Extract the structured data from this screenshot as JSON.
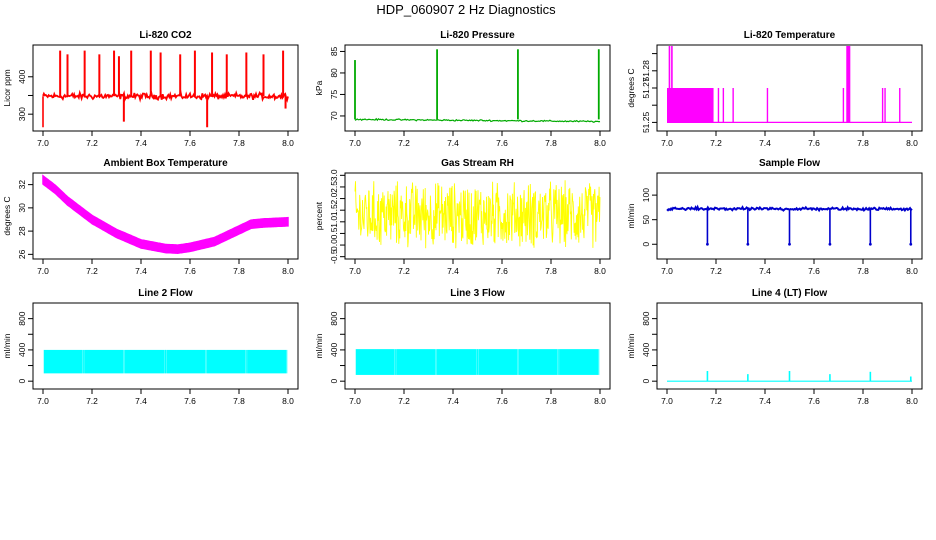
{
  "page": {
    "title": "HDP_060907 2 Hz Diagnostics"
  },
  "chart_data": [
    {
      "type": "line",
      "title": "Li-820 CO2",
      "ylabel": "Licor ppm",
      "xlabel": "",
      "xlim": [
        7.0,
        8.0
      ],
      "ylim": [
        255,
        485
      ],
      "xticks": [
        7.0,
        7.2,
        7.4,
        7.6,
        7.8,
        8.0
      ],
      "xtick_labels": [
        "7.0",
        "7.2",
        "7.4",
        "7.6",
        "7.8",
        "8.0"
      ],
      "yticks": [
        300,
        350,
        400
      ],
      "ytick_labels": [
        "300",
        "",
        "400"
      ],
      "color": "#ff0000",
      "series": [
        {
          "name": "CO2",
          "baseline": 348,
          "noise": 7,
          "start_spike": 280,
          "start_spike_low": 265,
          "spikes": [
            {
              "x": 7.07,
              "y": 470
            },
            {
              "x": 7.1,
              "y": 460
            },
            {
              "x": 7.17,
              "y": 470
            },
            {
              "x": 7.23,
              "y": 460
            },
            {
              "x": 7.29,
              "y": 470
            },
            {
              "x": 7.31,
              "y": 455
            },
            {
              "x": 7.33,
              "y": 280
            },
            {
              "x": 7.36,
              "y": 470
            },
            {
              "x": 7.44,
              "y": 470
            },
            {
              "x": 7.48,
              "y": 465
            },
            {
              "x": 7.56,
              "y": 460
            },
            {
              "x": 7.62,
              "y": 470
            },
            {
              "x": 7.67,
              "y": 265
            },
            {
              "x": 7.69,
              "y": 465
            },
            {
              "x": 7.75,
              "y": 460
            },
            {
              "x": 7.83,
              "y": 465
            },
            {
              "x": 7.9,
              "y": 460
            },
            {
              "x": 7.98,
              "y": 470
            },
            {
              "x": 7.99,
              "y": 315
            }
          ]
        }
      ]
    },
    {
      "type": "line",
      "title": "Li-820 Pressure",
      "ylabel": "kPa",
      "xlabel": "",
      "xlim": [
        7.0,
        8.0
      ],
      "ylim": [
        66.5,
        86.5
      ],
      "xticks": [
        7.0,
        7.2,
        7.4,
        7.6,
        7.8,
        8.0
      ],
      "xtick_labels": [
        "7.0",
        "7.2",
        "7.4",
        "7.6",
        "7.8",
        "8.0"
      ],
      "yticks": [
        70,
        75,
        80,
        85
      ],
      "ytick_labels": [
        "70",
        "75",
        "80",
        "85"
      ],
      "color": "#00aa00",
      "series": [
        {
          "name": "Pressure",
          "start": 69.2,
          "end": 68.7,
          "noise": 0.15,
          "spikes": [
            {
              "x": 7.0,
              "y": 83
            },
            {
              "x": 7.335,
              "y": 85.5
            },
            {
              "x": 7.665,
              "y": 85.5
            },
            {
              "x": 7.995,
              "y": 85.5
            }
          ]
        }
      ]
    },
    {
      "type": "line",
      "title": "Li-820 Temperature",
      "ylabel": "degrees C",
      "xlabel": "",
      "xlim": [
        7.0,
        8.0
      ],
      "ylim": [
        51.245,
        51.295
      ],
      "xticks": [
        7.0,
        7.2,
        7.4,
        7.6,
        7.8,
        8.0
      ],
      "xtick_labels": [
        "7.0",
        "7.2",
        "7.4",
        "7.6",
        "7.8",
        "8.0"
      ],
      "yticks": [
        51.25,
        51.26,
        51.27,
        51.28,
        51.29
      ],
      "ytick_labels": [
        "51.25",
        "",
        "51.27",
        "51.28",
        ""
      ],
      "color": "#ff00ff",
      "series": [
        {
          "name": "Temperature",
          "low": 51.25,
          "mid": 51.27,
          "high": 51.295,
          "dense_band": [
            7.0,
            7.19
          ],
          "full_spikes": [
            7.01,
            7.02,
            7.735,
            7.74,
            7.745
          ],
          "mid_spikes": [
            7.21,
            7.23,
            7.27,
            7.41,
            7.72,
            7.88,
            7.89,
            7.95
          ]
        }
      ]
    },
    {
      "type": "line",
      "title": "Ambient Box Temperature",
      "ylabel": "degrees C",
      "xlabel": "",
      "xlim": [
        7.0,
        8.0
      ],
      "ylim": [
        25.6,
        33.0
      ],
      "xticks": [
        7.0,
        7.2,
        7.4,
        7.6,
        7.8,
        8.0
      ],
      "xtick_labels": [
        "7.0",
        "7.2",
        "7.4",
        "7.6",
        "7.8",
        "8.0"
      ],
      "yticks": [
        26,
        28,
        30,
        32
      ],
      "ytick_labels": [
        "26",
        "28",
        "30",
        "32"
      ],
      "color": "#ff00ff",
      "series": [
        {
          "name": "Ambient",
          "noise": 0.35,
          "x": [
            7.0,
            7.05,
            7.1,
            7.2,
            7.3,
            7.4,
            7.5,
            7.55,
            7.6,
            7.7,
            7.8,
            7.85,
            7.9,
            8.0
          ],
          "y": [
            32.4,
            31.6,
            30.6,
            29.0,
            27.8,
            26.9,
            26.5,
            26.45,
            26.6,
            27.1,
            28.1,
            28.6,
            28.7,
            28.8
          ]
        }
      ]
    },
    {
      "type": "line",
      "title": "Gas Stream RH",
      "ylabel": "percent",
      "xlabel": "",
      "xlim": [
        7.0,
        8.0
      ],
      "ylim": [
        -0.6,
        3.1
      ],
      "xticks": [
        7.0,
        7.2,
        7.4,
        7.6,
        7.8,
        8.0
      ],
      "xtick_labels": [
        "7.0",
        "7.2",
        "7.4",
        "7.6",
        "7.8",
        "8.0"
      ],
      "yticks": [
        -0.5,
        0.5,
        1.5,
        2.5
      ],
      "ytick_labels": [
        "-0.5",
        "0.5",
        "1.5",
        "2.5"
      ],
      "extra_yticks": [
        0.0,
        1.0,
        2.0,
        3.0
      ],
      "extra_ytick_labels": [
        "0.0",
        "1.0",
        "2.0",
        "3.0"
      ],
      "color": "#ffff00",
      "series": [
        {
          "name": "RH",
          "center": 1.3,
          "amplitude": 1.6
        }
      ]
    },
    {
      "type": "line",
      "title": "Sample Flow",
      "ylabel": "ml/min",
      "xlabel": "",
      "xlim": [
        7.0,
        8.0
      ],
      "ylim": [
        -30,
        145
      ],
      "xticks": [
        7.0,
        7.2,
        7.4,
        7.6,
        7.8,
        8.0
      ],
      "xtick_labels": [
        "7.0",
        "7.2",
        "7.4",
        "7.6",
        "7.8",
        "8.0"
      ],
      "yticks": [
        0,
        50,
        100
      ],
      "ytick_labels": [
        "0",
        "50",
        "100"
      ],
      "color": "#0000cc",
      "series": [
        {
          "name": "Sample Flow",
          "baseline": 72,
          "noise": 2.5,
          "drops": [
            {
              "x": 7.165,
              "y": 0
            },
            {
              "x": 7.33,
              "y": 0
            },
            {
              "x": 7.5,
              "y": 0
            },
            {
              "x": 7.665,
              "y": 0
            },
            {
              "x": 7.83,
              "y": 0
            },
            {
              "x": 7.995,
              "y": 0
            }
          ]
        }
      ]
    },
    {
      "type": "line",
      "title": "Line 2 Flow",
      "ylabel": "ml/min",
      "xlabel": "",
      "xlim": [
        7.0,
        8.0
      ],
      "ylim": [
        -100,
        1000
      ],
      "xticks": [
        7.0,
        7.2,
        7.4,
        7.6,
        7.8,
        8.0
      ],
      "xtick_labels": [
        "7.0",
        "7.2",
        "7.4",
        "7.6",
        "7.8",
        "8.0"
      ],
      "yticks": [
        0,
        200,
        400,
        600,
        800
      ],
      "ytick_labels": [
        "0",
        "",
        "400",
        "",
        "800"
      ],
      "color": "#00ffff",
      "series": [
        {
          "name": "Line 2",
          "low": 100,
          "high": 400,
          "gaps": [
            7.165,
            7.33,
            7.5,
            7.665,
            7.83,
            7.995
          ]
        }
      ]
    },
    {
      "type": "line",
      "title": "Line 3 Flow",
      "ylabel": "ml/min",
      "xlabel": "",
      "xlim": [
        7.0,
        8.0
      ],
      "ylim": [
        -100,
        1000
      ],
      "xticks": [
        7.0,
        7.2,
        7.4,
        7.6,
        7.8,
        8.0
      ],
      "xtick_labels": [
        "7.0",
        "7.2",
        "7.4",
        "7.6",
        "7.8",
        "8.0"
      ],
      "yticks": [
        0,
        200,
        400,
        600,
        800
      ],
      "ytick_labels": [
        "0",
        "",
        "400",
        "",
        "800"
      ],
      "color": "#00ffff",
      "series": [
        {
          "name": "Line 3",
          "low": 80,
          "high": 410,
          "gaps": [
            7.165,
            7.33,
            7.5,
            7.665,
            7.83,
            7.995
          ]
        }
      ]
    },
    {
      "type": "line",
      "title": "Line 4 (LT) Flow",
      "ylabel": "ml/min",
      "xlabel": "",
      "xlim": [
        7.0,
        8.0
      ],
      "ylim": [
        -100,
        1000
      ],
      "xticks": [
        7.0,
        7.2,
        7.4,
        7.6,
        7.8,
        8.0
      ],
      "xtick_labels": [
        "7.0",
        "7.2",
        "7.4",
        "7.6",
        "7.8",
        "8.0"
      ],
      "yticks": [
        0,
        200,
        400,
        600,
        800
      ],
      "ytick_labels": [
        "0",
        "",
        "400",
        "",
        "800"
      ],
      "color": "#00ffff",
      "series": [
        {
          "name": "Line 4",
          "baseline": 0,
          "spikes": [
            {
              "x": 7.165,
              "y": 130
            },
            {
              "x": 7.33,
              "y": 90
            },
            {
              "x": 7.5,
              "y": 130
            },
            {
              "x": 7.665,
              "y": 90
            },
            {
              "x": 7.83,
              "y": 120
            },
            {
              "x": 7.995,
              "y": 60
            }
          ]
        }
      ]
    }
  ]
}
